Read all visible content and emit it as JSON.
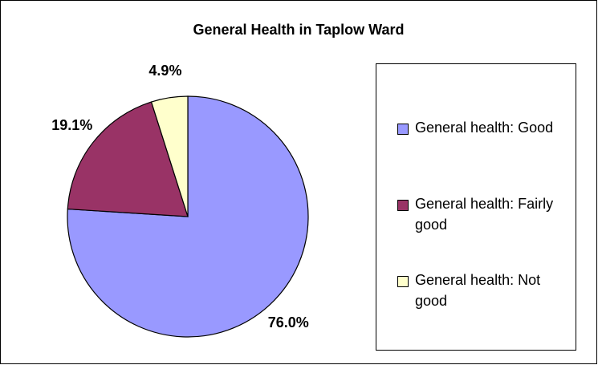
{
  "chart_data": {
    "type": "pie",
    "title": "General Health in Taplow Ward",
    "categories": [
      "General health: Good",
      "General health: Fairly good",
      "General health: Not good"
    ],
    "values": [
      76.0,
      19.1,
      4.9
    ],
    "value_labels": [
      "76.0%",
      "19.1%",
      "4.9%"
    ],
    "colors": [
      "#9999ff",
      "#993366",
      "#ffffcc"
    ],
    "legend": "right"
  }
}
